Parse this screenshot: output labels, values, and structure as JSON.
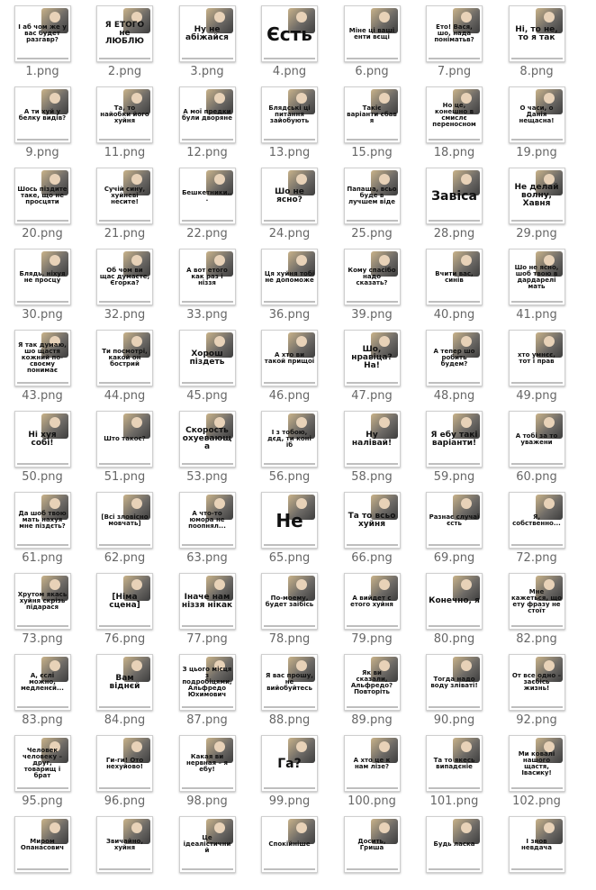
{
  "items": [
    {
      "file": "1.png",
      "caption": "І аб чом же у вас будет разгавр?",
      "size": "s"
    },
    {
      "file": "2.png",
      "caption": "Я ЕТОГО не ЛЮБЛЮ",
      "size": "m"
    },
    {
      "file": "3.png",
      "caption": "Ну не абіжайся",
      "size": "m"
    },
    {
      "file": "4.png",
      "caption": "Єсть",
      "size": "xl"
    },
    {
      "file": "6.png",
      "caption": "Міне ці ваші енти вєщі",
      "size": "s"
    },
    {
      "file": "7.png",
      "caption": "Ето! Вася, шо, нада поніматьв?",
      "size": "s"
    },
    {
      "file": "8.png",
      "caption": "Ні, то не, то я так",
      "size": "m"
    },
    {
      "file": "9.png",
      "caption": "А ти хуй у белку видів?",
      "size": "s"
    },
    {
      "file": "11.png",
      "caption": "Та, то найобки його хуйня",
      "size": "s"
    },
    {
      "file": "12.png",
      "caption": "А мої предки були дворяне",
      "size": "s"
    },
    {
      "file": "13.png",
      "caption": "Блядські ці питання зайобують",
      "size": "s"
    },
    {
      "file": "15.png",
      "caption": "Такіє варіанти єбав я",
      "size": "s"
    },
    {
      "file": "18.png",
      "caption": "Но це, конешно в смислє переносном",
      "size": "s"
    },
    {
      "file": "19.png",
      "caption": "О часи, о Данія нещасна!",
      "size": "s"
    },
    {
      "file": "20.png",
      "caption": "Шось піздите таке, що не просцяти",
      "size": "s"
    },
    {
      "file": "21.png",
      "caption": "Сучій сину, хуйневі несите!",
      "size": "s"
    },
    {
      "file": "22.png",
      "caption": "Бешкетники...",
      "size": "s"
    },
    {
      "file": "24.png",
      "caption": "Шо не ясно?",
      "size": "m"
    },
    {
      "file": "25.png",
      "caption": "Папаша, всьо буде в лучшем віде",
      "size": "s"
    },
    {
      "file": "28.png",
      "caption": "Завіса",
      "size": "l"
    },
    {
      "file": "29.png",
      "caption": "Не делай волну, Хавня",
      "size": "m"
    },
    {
      "file": "30.png",
      "caption": "Блядь, ніхуя не просцу",
      "size": "s"
    },
    {
      "file": "32.png",
      "caption": "Об чом ви щас думаєте, Єгорка?",
      "size": "s"
    },
    {
      "file": "33.png",
      "caption": "А вот етого как раз і ніззя",
      "size": "s"
    },
    {
      "file": "36.png",
      "caption": "Ця хуйня тобі не допоможе",
      "size": "s"
    },
    {
      "file": "39.png",
      "caption": "Кому спасібо надо сказать?",
      "size": "s"
    },
    {
      "file": "40.png",
      "caption": "Вчити вас, синів",
      "size": "s"
    },
    {
      "file": "41.png",
      "caption": "Шо не ясно, шоб твою в дардарелі мать",
      "size": "s"
    },
    {
      "file": "43.png",
      "caption": "Я так думаю, шо щастя кожний по-своєму понимає",
      "size": "s"
    },
    {
      "file": "44.png",
      "caption": "Ти посмотрі, какой он бострий",
      "size": "s"
    },
    {
      "file": "45.png",
      "caption": "Хорош піздеть",
      "size": "m"
    },
    {
      "file": "46.png",
      "caption": "А хто ви такой прищої",
      "size": "s"
    },
    {
      "file": "47.png",
      "caption": "Шо, нравіца? На!",
      "size": "m"
    },
    {
      "file": "48.png",
      "caption": "А тепер шо робить будем?",
      "size": "s"
    },
    {
      "file": "49.png",
      "caption": "хто умнєє, тот і прав",
      "size": "s"
    },
    {
      "file": "50.png",
      "caption": "Ні хуя собі!",
      "size": "m"
    },
    {
      "file": "51.png",
      "caption": "Што такоє?",
      "size": "s"
    },
    {
      "file": "53.png",
      "caption": "Скорость охуевающа",
      "size": "m"
    },
    {
      "file": "56.png",
      "caption": "І з тобою, дєд, ти коні їб",
      "size": "s"
    },
    {
      "file": "58.png",
      "caption": "Ну налівай!",
      "size": "m"
    },
    {
      "file": "59.png",
      "caption": "Я ебу такі варіанти!",
      "size": "m"
    },
    {
      "file": "60.png",
      "caption": "А тобі за то уважени",
      "size": "s"
    },
    {
      "file": "61.png",
      "caption": "Да шоб твою мать нахуя мне піздєть?",
      "size": "s"
    },
    {
      "file": "62.png",
      "caption": "[Всі зловісно мовчать]",
      "size": "s"
    },
    {
      "file": "63.png",
      "caption": "А что-то юмора не поопнял...",
      "size": "s"
    },
    {
      "file": "65.png",
      "caption": "Не",
      "size": "xl"
    },
    {
      "file": "66.png",
      "caption": "Та то всьо хуйня",
      "size": "m"
    },
    {
      "file": "69.png",
      "caption": "Разнає случаї єсть",
      "size": "s"
    },
    {
      "file": "72.png",
      "caption": "Я, собственно...",
      "size": "s"
    },
    {
      "file": "73.png",
      "caption": "Хрутом якась хуйня скрізь підарася",
      "size": "s"
    },
    {
      "file": "76.png",
      "caption": "[Німа сцена]",
      "size": "m"
    },
    {
      "file": "77.png",
      "caption": "Іначе нам ніззя нікак",
      "size": "m"
    },
    {
      "file": "78.png",
      "caption": "По-моему, будет заїбісь",
      "size": "s"
    },
    {
      "file": "79.png",
      "caption": "А вийдет с етого хуйня",
      "size": "s"
    },
    {
      "file": "80.png",
      "caption": "Конечно, я",
      "size": "m"
    },
    {
      "file": "82.png",
      "caption": "Мне кажеться, що ету фразу не стоїт",
      "size": "s"
    },
    {
      "file": "83.png",
      "caption": "А, єслі можно, медленєй...",
      "size": "s"
    },
    {
      "file": "84.png",
      "caption": "Вам віднєй",
      "size": "m"
    },
    {
      "file": "87.png",
      "caption": "З цього місця з подробіцями, Альфредо Юхимович",
      "size": "s"
    },
    {
      "file": "88.png",
      "caption": "Я вас прошу, не вийобуйтесь",
      "size": "s"
    },
    {
      "file": "89.png",
      "caption": "Як ви сказали, Альфредо? Повторіть",
      "size": "s"
    },
    {
      "file": "90.png",
      "caption": "Тогда надо воду зліваті!",
      "size": "s"
    },
    {
      "file": "92.png",
      "caption": "От все одно – заєбісь жизнь!",
      "size": "s"
    },
    {
      "file": "95.png",
      "caption": "Человек человеку – друг, товарищ і брат",
      "size": "s"
    },
    {
      "file": "96.png",
      "caption": "Ги-ги! Ото нехуйово!",
      "size": "s"
    },
    {
      "file": "98.png",
      "caption": "Какая ви нервная – я ебу!",
      "size": "s"
    },
    {
      "file": "99.png",
      "caption": "Га?",
      "size": "l"
    },
    {
      "file": "100.png",
      "caption": "А хто це к нам лізе?",
      "size": "s"
    },
    {
      "file": "101.png",
      "caption": "Та то якесь випадєніе",
      "size": "s"
    },
    {
      "file": "102.png",
      "caption": "Ми ковалі нашого щастя, Івасику!",
      "size": "s"
    },
    {
      "file": "",
      "caption": "Миром Опанасович",
      "size": "s"
    },
    {
      "file": "",
      "caption": "Звичайно, хуйня",
      "size": "s"
    },
    {
      "file": "",
      "caption": "Це ідеалістичний",
      "size": "s"
    },
    {
      "file": "",
      "caption": "Спокійніше",
      "size": "s"
    },
    {
      "file": "",
      "caption": "Досить, Гриша",
      "size": "s"
    },
    {
      "file": "",
      "caption": "Будь ласка",
      "size": "s"
    },
    {
      "file": "",
      "caption": "І знов невдача",
      "size": "s"
    }
  ]
}
